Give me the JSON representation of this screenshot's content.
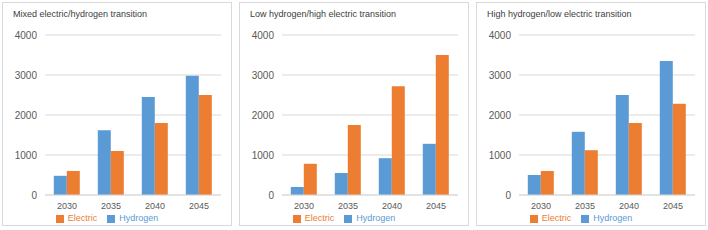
{
  "chart_data": [
    {
      "type": "bar",
      "title": "Mixed electric/hydrogen transition",
      "categories": [
        "2030",
        "2035",
        "2040",
        "2045"
      ],
      "series": [
        {
          "name": "Hydrogen",
          "color": "#5b9bd5",
          "values": [
            480,
            1620,
            2450,
            2980
          ]
        },
        {
          "name": "Electric",
          "color": "#ed7d31",
          "values": [
            600,
            1100,
            1800,
            2500
          ]
        }
      ],
      "ylim": [
        0,
        4000
      ],
      "yticks": [
        0,
        1000,
        2000,
        3000,
        4000
      ],
      "grid": true,
      "legend": "bottom"
    },
    {
      "type": "bar",
      "title": "Low hydrogen/high electric transition",
      "categories": [
        "2030",
        "2035",
        "2040",
        "2045"
      ],
      "series": [
        {
          "name": "Hydrogen",
          "color": "#5b9bd5",
          "values": [
            200,
            550,
            920,
            1280
          ]
        },
        {
          "name": "Electric",
          "color": "#ed7d31",
          "values": [
            780,
            1750,
            2720,
            3500
          ]
        }
      ],
      "ylim": [
        0,
        4000
      ],
      "yticks": [
        0,
        1000,
        2000,
        3000,
        4000
      ],
      "grid": true,
      "legend": "bottom"
    },
    {
      "type": "bar",
      "title": "High hydrogen/low electric transition",
      "categories": [
        "2030",
        "2035",
        "2040",
        "2045"
      ],
      "series": [
        {
          "name": "Hydrogen",
          "color": "#5b9bd5",
          "values": [
            500,
            1580,
            2500,
            3350
          ]
        },
        {
          "name": "Electric",
          "color": "#ed7d31",
          "values": [
            600,
            1120,
            1800,
            2280
          ]
        }
      ],
      "ylim": [
        0,
        4000
      ],
      "yticks": [
        0,
        1000,
        2000,
        3000,
        4000
      ],
      "grid": true,
      "legend": "bottom"
    }
  ]
}
